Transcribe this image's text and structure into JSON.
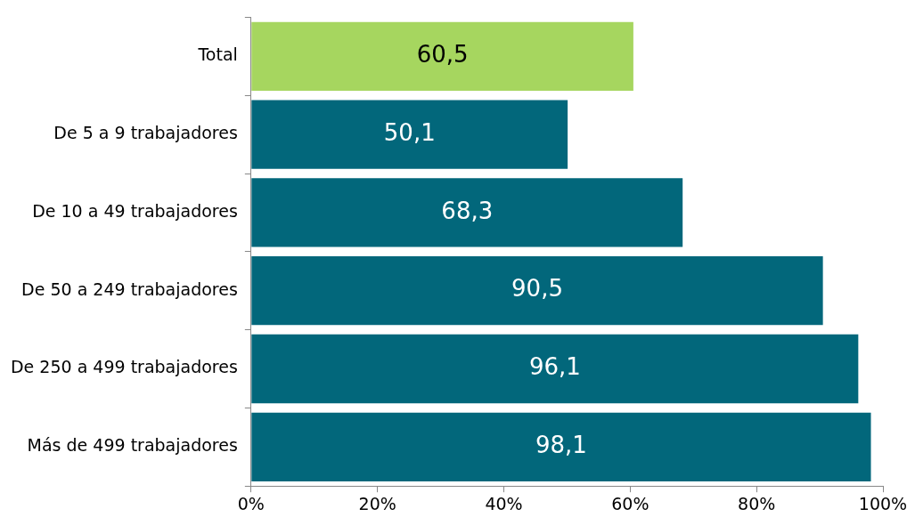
{
  "chart_data": {
    "type": "bar",
    "orientation": "horizontal",
    "categories": [
      "Total",
      "De 5 a 9 trabajadores",
      "De 10 a 49 trabajadores",
      "De 50 a 249 trabajadores",
      "De 250 a 499 trabajadores",
      "Más de 499 trabajadores"
    ],
    "values": [
      60.5,
      50.1,
      68.3,
      90.5,
      96.1,
      98.1
    ],
    "value_labels": [
      "60,5",
      "50,1",
      "68,3",
      "90,5",
      "96,1",
      "98,1"
    ],
    "colors": [
      "#a6d65f",
      "#02677b",
      "#02677b",
      "#02677b",
      "#02677b",
      "#02677b"
    ],
    "xlim": [
      0,
      100
    ],
    "xticks": [
      {
        "value": 0,
        "label": "0%"
      },
      {
        "value": 20,
        "label": "20%"
      },
      {
        "value": 40,
        "label": "40%"
      },
      {
        "value": 60,
        "label": "60%"
      },
      {
        "value": 80,
        "label": "80%"
      },
      {
        "value": 100,
        "label": "100%"
      }
    ],
    "grid": false,
    "legend": false
  }
}
